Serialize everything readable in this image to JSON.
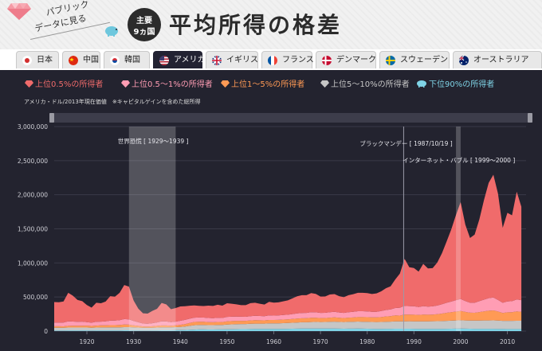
{
  "header": {
    "logo_line1": "パブリック",
    "logo_line2": "データに見る",
    "badge_line1": "主要",
    "badge_line2": "9ヵ国",
    "title": "平均所得の格差"
  },
  "tabs": [
    {
      "label": "日本",
      "flag": "japan-flag-icon",
      "active": false
    },
    {
      "label": "中国",
      "flag": "china-flag-icon",
      "active": false
    },
    {
      "label": "韓国",
      "flag": "korea-flag-icon",
      "active": false
    },
    {
      "label": "アメリカ",
      "flag": "usa-flag-icon",
      "active": true
    },
    {
      "label": "イギリス",
      "flag": "uk-flag-icon",
      "active": false
    },
    {
      "label": "フランス",
      "flag": "france-flag-icon",
      "active": false
    },
    {
      "label": "デンマーク",
      "flag": "denmark-flag-icon",
      "active": false
    },
    {
      "label": "スウェーデン",
      "flag": "sweden-flag-icon",
      "active": false
    },
    {
      "label": "オーストラリア",
      "flag": "australia-flag-icon",
      "active": false
    }
  ],
  "legend": [
    {
      "label": "上位0.5%の所得者",
      "color": "#f06b6b",
      "icon": "red-diamond-icon"
    },
    {
      "label": "上位0.5～1%の所得者",
      "color": "#ff9db4",
      "icon": "pink-diamond-icon"
    },
    {
      "label": "上位1～5%の所得者",
      "color": "#ff9a55",
      "icon": "orange-diamond-icon"
    },
    {
      "label": "上位5～10%の所得者",
      "color": "#c6c6c6",
      "icon": "silver-diamond-icon"
    },
    {
      "label": "下位90%の所得者",
      "color": "#7fd3e6",
      "icon": "piggy-bank-icon"
    }
  ],
  "unit_note": "アメリカ・ドル/2013年現在価値　※キャピタルゲインを含めた総所得",
  "colors": {
    "background": "#23232f",
    "tab_active": "#222232"
  },
  "chart_data": {
    "type": "area",
    "stacked": true,
    "x": [
      1913,
      1914,
      1915,
      1916,
      1917,
      1918,
      1919,
      1920,
      1921,
      1922,
      1923,
      1924,
      1925,
      1926,
      1927,
      1928,
      1929,
      1930,
      1931,
      1932,
      1933,
      1934,
      1935,
      1936,
      1937,
      1938,
      1939,
      1940,
      1941,
      1942,
      1943,
      1944,
      1945,
      1946,
      1947,
      1948,
      1949,
      1950,
      1951,
      1952,
      1953,
      1954,
      1955,
      1956,
      1957,
      1958,
      1959,
      1960,
      1961,
      1962,
      1963,
      1964,
      1965,
      1966,
      1967,
      1968,
      1969,
      1970,
      1971,
      1972,
      1973,
      1974,
      1975,
      1976,
      1977,
      1978,
      1979,
      1980,
      1981,
      1982,
      1983,
      1984,
      1985,
      1986,
      1987,
      1988,
      1989,
      1990,
      1991,
      1992,
      1993,
      1994,
      1995,
      1996,
      1997,
      1998,
      1999,
      2000,
      2001,
      2002,
      2003,
      2004,
      2005,
      2006,
      2007,
      2008,
      2009,
      2010,
      2011,
      2012,
      2013
    ],
    "series": [
      {
        "name": "下位90%の所得者",
        "color": "#7fd3e6",
        "values": [
          9000,
          9000,
          9000,
          10000,
          10000,
          10000,
          10000,
          10000,
          9000,
          10000,
          11000,
          11000,
          11000,
          11000,
          11000,
          12000,
          12000,
          11000,
          10000,
          9000,
          9000,
          10000,
          11000,
          12000,
          12000,
          12000,
          13000,
          14000,
          16000,
          19000,
          22000,
          24000,
          24000,
          23000,
          23000,
          24000,
          24000,
          26000,
          27000,
          28000,
          29000,
          29000,
          30000,
          31000,
          31000,
          31000,
          32000,
          32000,
          32000,
          33000,
          34000,
          35000,
          36000,
          37000,
          37000,
          38000,
          38000,
          37000,
          37000,
          38000,
          38000,
          36000,
          35000,
          36000,
          36000,
          37000,
          36000,
          35000,
          34000,
          33000,
          33000,
          34000,
          34000,
          35000,
          35000,
          35000,
          35000,
          34000,
          33000,
          33000,
          32000,
          33000,
          33000,
          33000,
          34000,
          35000,
          36000,
          37000,
          36000,
          35000,
          34000,
          34000,
          34000,
          34000,
          34000,
          33000,
          31000,
          30000,
          30000,
          30000,
          30000
        ]
      },
      {
        "name": "上位5～10%の所得者",
        "color": "#c6c6c6",
        "values": [
          40000,
          40000,
          40000,
          42000,
          42000,
          42000,
          42000,
          42000,
          41000,
          42000,
          43000,
          43000,
          44000,
          44000,
          45000,
          46000,
          46000,
          44000,
          42000,
          40000,
          39000,
          40000,
          42000,
          44000,
          44000,
          43000,
          45000,
          48000,
          52000,
          58000,
          64000,
          66000,
          66000,
          64000,
          64000,
          66000,
          66000,
          70000,
          72000,
          74000,
          75000,
          75000,
          77000,
          79000,
          79000,
          79000,
          81000,
          81000,
          82000,
          84000,
          86000,
          88000,
          90000,
          92000,
          93000,
          95000,
          97000,
          96000,
          97000,
          99000,
          101000,
          99000,
          98000,
          100000,
          101000,
          103000,
          102000,
          101000,
          100000,
          100000,
          101000,
          104000,
          105000,
          107000,
          108000,
          109000,
          110000,
          110000,
          110000,
          111000,
          111000,
          112000,
          113000,
          114000,
          116000,
          118000,
          120000,
          122000,
          121000,
          120000,
          120000,
          121000,
          122000,
          123000,
          124000,
          122000,
          119000,
          120000,
          121000,
          122000,
          122000
        ]
      },
      {
        "name": "上位1～5%の所得者",
        "color": "#ff9a55",
        "values": [
          22000,
          22000,
          21000,
          25000,
          26000,
          26000,
          27000,
          28000,
          26000,
          29000,
          30000,
          31000,
          33000,
          33000,
          35000,
          38000,
          36000,
          30000,
          25000,
          20000,
          19000,
          21000,
          24000,
          27000,
          27000,
          24000,
          26000,
          30000,
          35000,
          42000,
          48000,
          48000,
          47000,
          44000,
          42000,
          44000,
          43000,
          48000,
          48000,
          48000,
          47000,
          46000,
          49000,
          50000,
          49000,
          48000,
          51000,
          50000,
          51000,
          52000,
          53000,
          55000,
          58000,
          59000,
          59000,
          62000,
          61000,
          58000,
          58000,
          60000,
          62000,
          60000,
          58000,
          61000,
          63000,
          66000,
          68000,
          68000,
          68000,
          68000,
          72000,
          77000,
          80000,
          88000,
          85000,
          98000,
          98000,
          96000,
          93000,
          98000,
          97000,
          98000,
          103000,
          110000,
          118000,
          124000,
          130000,
          135000,
          124000,
          115000,
          115000,
          124000,
          133000,
          142000,
          146000,
          132000,
          115000,
          125000,
          126000,
          136000,
          132000
        ]
      },
      {
        "name": "上位0.5～1%の所得者",
        "color": "#ff9db4",
        "values": [
          55000,
          54000,
          55000,
          65000,
          62000,
          58000,
          60000,
          52000,
          48000,
          55000,
          55000,
          58000,
          65000,
          66000,
          70000,
          80000,
          78000,
          64000,
          52000,
          42000,
          40000,
          45000,
          50000,
          60000,
          58000,
          52000,
          55000,
          60000,
          62000,
          63000,
          63000,
          62000,
          61000,
          62000,
          60000,
          62000,
          60000,
          65000,
          64000,
          62000,
          60000,
          60000,
          64000,
          65000,
          63000,
          62000,
          66000,
          65000,
          66000,
          67000,
          68000,
          72000,
          76000,
          78000,
          78000,
          82000,
          80000,
          76000,
          76000,
          80000,
          82000,
          78000,
          76000,
          80000,
          82000,
          86000,
          86000,
          84000,
          82000,
          82000,
          88000,
          94000,
          98000,
          108000,
          115000,
          128000,
          124000,
          124000,
          116000,
          124000,
          120000,
          120000,
          126000,
          136000,
          148000,
          156000,
          168000,
          178000,
          160000,
          146000,
          146000,
          160000,
          172000,
          184000,
          190000,
          170000,
          150000,
          160000,
          162000,
          176000,
          170000
        ]
      },
      {
        "name": "上位0.5%の所得者",
        "color": "#f06b6b",
        "values": [
          300000,
          298000,
          310000,
          420000,
          380000,
          320000,
          300000,
          250000,
          220000,
          280000,
          270000,
          290000,
          360000,
          350000,
          400000,
          500000,
          480000,
          300000,
          200000,
          150000,
          150000,
          180000,
          200000,
          270000,
          250000,
          190000,
          200000,
          210000,
          200000,
          190000,
          180000,
          170000,
          170000,
          180000,
          180000,
          190000,
          180000,
          200000,
          190000,
          180000,
          170000,
          170000,
          190000,
          190000,
          180000,
          170000,
          200000,
          190000,
          190000,
          200000,
          210000,
          230000,
          250000,
          260000,
          260000,
          280000,
          270000,
          240000,
          240000,
          260000,
          260000,
          240000,
          230000,
          250000,
          260000,
          270000,
          270000,
          270000,
          260000,
          270000,
          290000,
          320000,
          340000,
          420000,
          500000,
          690000,
          570000,
          560000,
          520000,
          620000,
          560000,
          560000,
          630000,
          750000,
          900000,
          1060000,
          1250000,
          1420000,
          1120000,
          950000,
          1000000,
          1200000,
          1460000,
          1690000,
          1800000,
          1560000,
          1100000,
          1300000,
          1260000,
          1580000,
          1370000
        ]
      }
    ],
    "xlim": [
      1913,
      2014
    ],
    "ylim": [
      0,
      3000000
    ],
    "yticks": [
      0,
      500000,
      1000000,
      1500000,
      2000000,
      2500000,
      3000000
    ],
    "ytick_labels": [
      "0",
      "500,000",
      "1,000,000",
      "1,500,000",
      "2,000,000",
      "2,500,000",
      "3,000,000"
    ],
    "xticks": [
      1920,
      1930,
      1940,
      1950,
      1960,
      1970,
      1980,
      1990,
      2000,
      2010
    ],
    "xtick_labels": [
      "1920",
      "1930",
      "1940",
      "1950",
      "1960",
      "1970",
      "1980",
      "1990",
      "2000",
      "2010"
    ],
    "grid": true,
    "events": [
      {
        "label": "世界恐慌 [ 1929～1939 ]",
        "start": 1929,
        "end": 1939
      },
      {
        "label": "ブラックマンデー [ 1987/10/19 ]",
        "start": 1987.8,
        "end": 1987.8
      },
      {
        "label": "インターネット・バブル [ 1999～2000 ]",
        "start": 1999,
        "end": 2000
      }
    ]
  }
}
